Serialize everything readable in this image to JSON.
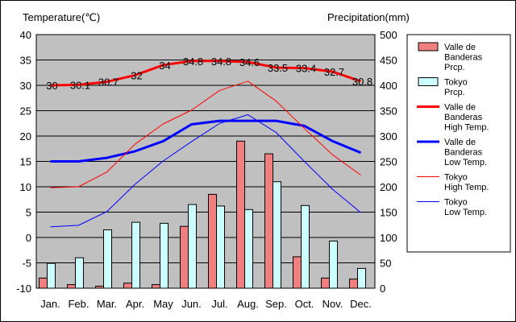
{
  "chart_data": {
    "type": "bar+line",
    "categories": [
      "Jan.",
      "Feb.",
      "Mar.",
      "Apr.",
      "May",
      "Jun.",
      "Jul.",
      "Aug.",
      "Sep.",
      "Oct.",
      "Nov.",
      "Dec."
    ],
    "left_axis": {
      "label": "Temperature(℃)",
      "min": -10,
      "max": 40,
      "step": 5
    },
    "right_axis": {
      "label": "Precipitation(mm)",
      "min": 0,
      "max": 500,
      "step": 50
    },
    "grid": true,
    "legend_position": "right",
    "bars": [
      {
        "name": "Valle de Banderas Prcp.",
        "color": "#f08080",
        "values": [
          20,
          7,
          4,
          10,
          7,
          122,
          185,
          290,
          265,
          62,
          20,
          18
        ]
      },
      {
        "name": "Tokyo Prcp.",
        "color": "#ccffff",
        "values": [
          49,
          60,
          115,
          130,
          128,
          165,
          162,
          155,
          210,
          163,
          93,
          39
        ]
      }
    ],
    "lines": [
      {
        "name": "Valle de Banderas High Temp.",
        "color": "#ff0000",
        "width": 3,
        "values": [
          30,
          30.1,
          30.7,
          32,
          34,
          34.8,
          34.8,
          34.6,
          33.5,
          33.4,
          32.7,
          30.8
        ],
        "labels": [
          "30",
          "30.1",
          "30.7",
          "32",
          "34",
          "34.8",
          "34.8",
          "34.6",
          "33.5",
          "33.4",
          "32.7",
          "30.8"
        ]
      },
      {
        "name": "Valle de Banderas Low Temp.",
        "color": "#0000ff",
        "width": 3,
        "values": [
          15,
          15,
          15.7,
          17,
          19,
          22.3,
          23,
          23,
          23,
          22,
          19,
          16.7
        ]
      },
      {
        "name": "Tokyo High Temp.",
        "color": "#ff0000",
        "width": 1,
        "values": [
          9.8,
          10,
          12.9,
          18.4,
          22.4,
          25.1,
          29,
          30.8,
          26.9,
          21.5,
          16.3,
          12.3
        ]
      },
      {
        "name": "Tokyo Low Temp.",
        "color": "#0000ff",
        "width": 1,
        "values": [
          2.1,
          2.4,
          5.1,
          10.5,
          15.1,
          18.9,
          22.5,
          24.2,
          20.7,
          15,
          9.5,
          4.9
        ]
      }
    ],
    "legend": [
      {
        "kind": "bar",
        "color": "#f08080",
        "lines": [
          "Valle de",
          "Banderas",
          "Prcp."
        ]
      },
      {
        "kind": "bar",
        "color": "#ccffff",
        "lines": [
          "Tokyo",
          "Prcp."
        ]
      },
      {
        "kind": "line",
        "color": "#ff0000",
        "width": 3,
        "lines": [
          "Valle de",
          "Banderas",
          "High Temp."
        ]
      },
      {
        "kind": "line",
        "color": "#0000ff",
        "width": 3,
        "lines": [
          "Valle de",
          "Banderas",
          "Low Temp."
        ]
      },
      {
        "kind": "line",
        "color": "#ff0000",
        "width": 1,
        "lines": [
          "Tokyo",
          "High Temp."
        ]
      },
      {
        "kind": "line",
        "color": "#0000ff",
        "width": 1,
        "lines": [
          "Tokyo",
          "Low Temp."
        ]
      }
    ]
  }
}
